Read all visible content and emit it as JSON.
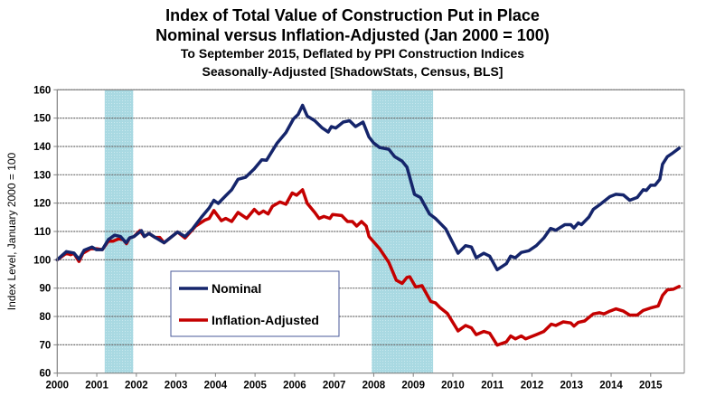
{
  "chart_data": {
    "type": "line",
    "title": "Index of Total Value of Construction Put in Place",
    "subtitle": "Nominal versus Inflation-Adjusted  (Jan 2000 = 100)",
    "subtitle2": "To September 2015, Deflated by PPI Construction Indices",
    "subtitle3": "Seasonally-Adjusted [ShadowStats, Census, BLS]",
    "xlabel": "",
    "ylabel": "Index Level, January 2000 = 100",
    "xlim": [
      2000,
      2015.85
    ],
    "ylim": [
      60,
      160
    ],
    "xticks": [
      "2000",
      "2001",
      "2002",
      "2003",
      "2004",
      "2005",
      "2006",
      "2007",
      "2008",
      "2009",
      "2010",
      "2011",
      "2012",
      "2013",
      "2014",
      "2015"
    ],
    "yticks": [
      "60",
      "70",
      "80",
      "90",
      "100",
      "110",
      "120",
      "130",
      "140",
      "150",
      "160"
    ],
    "grid": "horizontal",
    "legend_position": "center-left",
    "recessions": [
      [
        2001.2,
        2001.92
      ],
      [
        2007.95,
        2009.5
      ]
    ],
    "colors": {
      "nominal": "#15256b",
      "inflation": "#c40000",
      "recession": "#a9d9e2",
      "grid": "#808080"
    },
    "series": [
      {
        "name": "Nominal",
        "points": [
          [
            2000.0,
            100
          ],
          [
            2000.23,
            102.9
          ],
          [
            2000.42,
            102.4
          ],
          [
            2000.55,
            100.2
          ],
          [
            2000.68,
            103.4
          ],
          [
            2000.88,
            104.5
          ],
          [
            2000.99,
            103.6
          ],
          [
            2001.14,
            103.6
          ],
          [
            2001.29,
            107.1
          ],
          [
            2001.45,
            108.7
          ],
          [
            2001.6,
            108.2
          ],
          [
            2001.74,
            106
          ],
          [
            2001.83,
            107.7
          ],
          [
            2001.94,
            108.2
          ],
          [
            2002.13,
            110.3
          ],
          [
            2002.2,
            108.2
          ],
          [
            2002.32,
            109.3
          ],
          [
            2002.44,
            108.2
          ],
          [
            2002.7,
            106
          ],
          [
            2003.04,
            109.8
          ],
          [
            2003.23,
            108.2
          ],
          [
            2003.42,
            110.9
          ],
          [
            2003.65,
            115.1
          ],
          [
            2003.84,
            118.3
          ],
          [
            2003.96,
            121
          ],
          [
            2004.07,
            119.9
          ],
          [
            2004.26,
            122.6
          ],
          [
            2004.41,
            124.7
          ],
          [
            2004.57,
            128.4
          ],
          [
            2004.76,
            129.1
          ],
          [
            2004.98,
            132.1
          ],
          [
            2005.17,
            135.3
          ],
          [
            2005.29,
            135.1
          ],
          [
            2005.56,
            141.2
          ],
          [
            2005.78,
            144.9
          ],
          [
            2005.97,
            149.7
          ],
          [
            2006.09,
            151.3
          ],
          [
            2006.2,
            154.5
          ],
          [
            2006.32,
            150.7
          ],
          [
            2006.51,
            149.1
          ],
          [
            2006.7,
            146.5
          ],
          [
            2006.85,
            145.1
          ],
          [
            2006.93,
            147
          ],
          [
            2007.04,
            146.5
          ],
          [
            2007.23,
            148.6
          ],
          [
            2007.39,
            149.1
          ],
          [
            2007.54,
            147
          ],
          [
            2007.73,
            148.6
          ],
          [
            2007.88,
            143.3
          ],
          [
            2008.0,
            141.2
          ],
          [
            2008.15,
            139.6
          ],
          [
            2008.38,
            139
          ],
          [
            2008.53,
            136.4
          ],
          [
            2008.72,
            134.8
          ],
          [
            2008.84,
            132.7
          ],
          [
            2009.03,
            123.1
          ],
          [
            2009.18,
            122
          ],
          [
            2009.41,
            116.2
          ],
          [
            2009.56,
            114.6
          ],
          [
            2009.82,
            110.9
          ],
          [
            2010.13,
            102.3
          ],
          [
            2010.32,
            105
          ],
          [
            2010.47,
            104.5
          ],
          [
            2010.59,
            100.7
          ],
          [
            2010.78,
            102.3
          ],
          [
            2010.93,
            101.3
          ],
          [
            2011.12,
            96.5
          ],
          [
            2011.35,
            98.6
          ],
          [
            2011.46,
            101.3
          ],
          [
            2011.58,
            100.7
          ],
          [
            2011.73,
            102.6
          ],
          [
            2011.92,
            103.2
          ],
          [
            2012.11,
            105
          ],
          [
            2012.3,
            107.7
          ],
          [
            2012.47,
            111.1
          ],
          [
            2012.6,
            110.4
          ],
          [
            2012.83,
            112.4
          ],
          [
            2012.98,
            112.4
          ],
          [
            2013.06,
            111.2
          ],
          [
            2013.17,
            113
          ],
          [
            2013.25,
            112.4
          ],
          [
            2013.44,
            115.1
          ],
          [
            2013.55,
            117.8
          ],
          [
            2013.71,
            119.4
          ],
          [
            2013.97,
            122.3
          ],
          [
            2014.12,
            123.1
          ],
          [
            2014.31,
            122.9
          ],
          [
            2014.47,
            121
          ],
          [
            2014.66,
            122
          ],
          [
            2014.81,
            124.7
          ],
          [
            2014.89,
            124.5
          ],
          [
            2015.0,
            126.3
          ],
          [
            2015.11,
            126.3
          ],
          [
            2015.23,
            128.4
          ],
          [
            2015.3,
            133.7
          ],
          [
            2015.42,
            136.4
          ],
          [
            2015.53,
            137.4
          ],
          [
            2015.72,
            139.4
          ]
        ]
      },
      {
        "name": "Inflation-Adjusted",
        "points": [
          [
            2000.0,
            100
          ],
          [
            2000.23,
            102.3
          ],
          [
            2000.34,
            101.8
          ],
          [
            2000.42,
            102.3
          ],
          [
            2000.55,
            99.4
          ],
          [
            2000.65,
            102.3
          ],
          [
            2000.84,
            103.9
          ],
          [
            2000.99,
            103.9
          ],
          [
            2001.14,
            103.6
          ],
          [
            2001.29,
            106.6
          ],
          [
            2001.41,
            106.6
          ],
          [
            2001.56,
            107.4
          ],
          [
            2001.67,
            107.1
          ],
          [
            2001.75,
            105.7
          ],
          [
            2001.83,
            107.7
          ],
          [
            2001.94,
            108.2
          ],
          [
            2002.09,
            110.3
          ],
          [
            2002.2,
            108.2
          ],
          [
            2002.32,
            109.3
          ],
          [
            2002.47,
            107.9
          ],
          [
            2002.59,
            107.9
          ],
          [
            2002.7,
            106
          ],
          [
            2003.04,
            109.8
          ],
          [
            2003.23,
            107.7
          ],
          [
            2003.5,
            111.9
          ],
          [
            2003.73,
            114
          ],
          [
            2003.84,
            114.6
          ],
          [
            2003.96,
            117.4
          ],
          [
            2004.15,
            113.8
          ],
          [
            2004.26,
            114.6
          ],
          [
            2004.41,
            113.5
          ],
          [
            2004.57,
            116.7
          ],
          [
            2004.79,
            114.6
          ],
          [
            2004.98,
            117.8
          ],
          [
            2005.1,
            116.2
          ],
          [
            2005.21,
            117.2
          ],
          [
            2005.33,
            116.2
          ],
          [
            2005.44,
            118.9
          ],
          [
            2005.63,
            120.4
          ],
          [
            2005.78,
            119.6
          ],
          [
            2005.94,
            123.6
          ],
          [
            2006.05,
            122.8
          ],
          [
            2006.2,
            124.7
          ],
          [
            2006.32,
            119.9
          ],
          [
            2006.51,
            116.7
          ],
          [
            2006.62,
            114.6
          ],
          [
            2006.74,
            115.3
          ],
          [
            2006.89,
            114.6
          ],
          [
            2006.96,
            116
          ],
          [
            2007.19,
            115.6
          ],
          [
            2007.34,
            113.5
          ],
          [
            2007.46,
            113.5
          ],
          [
            2007.57,
            111.9
          ],
          [
            2007.69,
            113.5
          ],
          [
            2007.81,
            111.9
          ],
          [
            2007.88,
            108.2
          ],
          [
            2008.15,
            103.9
          ],
          [
            2008.38,
            99.1
          ],
          [
            2008.57,
            92.8
          ],
          [
            2008.72,
            91.7
          ],
          [
            2008.84,
            93.8
          ],
          [
            2008.91,
            94
          ],
          [
            2009.06,
            90.4
          ],
          [
            2009.22,
            90.9
          ],
          [
            2009.44,
            85.3
          ],
          [
            2009.56,
            84.8
          ],
          [
            2009.67,
            83.2
          ],
          [
            2009.86,
            81.1
          ],
          [
            2010.13,
            74.9
          ],
          [
            2010.32,
            76.8
          ],
          [
            2010.47,
            76
          ],
          [
            2010.59,
            73.6
          ],
          [
            2010.78,
            74.7
          ],
          [
            2010.93,
            74.1
          ],
          [
            2011.12,
            69.9
          ],
          [
            2011.35,
            71
          ],
          [
            2011.46,
            73.1
          ],
          [
            2011.58,
            72.1
          ],
          [
            2011.73,
            73.1
          ],
          [
            2011.84,
            72.1
          ],
          [
            2012.11,
            73.6
          ],
          [
            2012.3,
            74.7
          ],
          [
            2012.49,
            77.3
          ],
          [
            2012.6,
            76.8
          ],
          [
            2012.79,
            78.1
          ],
          [
            2012.98,
            77.7
          ],
          [
            2013.06,
            76.6
          ],
          [
            2013.17,
            77.9
          ],
          [
            2013.33,
            78.4
          ],
          [
            2013.55,
            80.9
          ],
          [
            2013.71,
            81.3
          ],
          [
            2013.82,
            80.9
          ],
          [
            2013.97,
            81.9
          ],
          [
            2014.12,
            82.7
          ],
          [
            2014.31,
            81.9
          ],
          [
            2014.47,
            80.5
          ],
          [
            2014.66,
            80.5
          ],
          [
            2014.81,
            82.1
          ],
          [
            2015.0,
            83
          ],
          [
            2015.19,
            83.7
          ],
          [
            2015.3,
            87.4
          ],
          [
            2015.42,
            89.4
          ],
          [
            2015.57,
            89.6
          ],
          [
            2015.72,
            90.6
          ]
        ]
      }
    ]
  }
}
